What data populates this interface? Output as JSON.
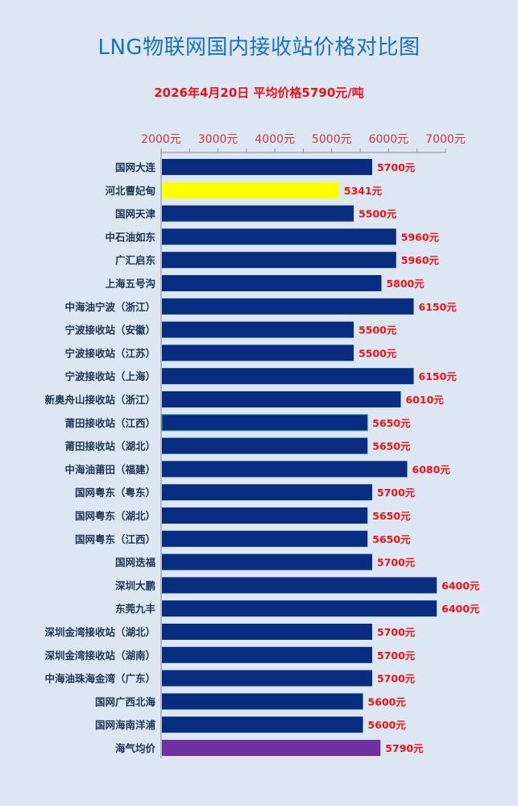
{
  "chart_data": {
    "type": "bar",
    "orientation": "horizontal",
    "title": "LNG物联网国内接收站价格对比图",
    "subtitle": "2026年4月20日 平均价格5790元/吨",
    "tick_labels": [
      "2000元",
      "3000元",
      "4000元",
      "5000元",
      "6000元",
      "7000元"
    ],
    "xlim": [
      2000,
      7000
    ],
    "axis_position": "top",
    "grid": false,
    "categories": [
      "国网大连",
      "河北曹妃甸",
      "国网天津",
      "中石油如东",
      "广汇启东",
      "上海五号沟",
      "中海油宁波（浙江）",
      "宁波接收站（安徽）",
      "宁波接收站（江苏）",
      "宁波接收站（上海）",
      "新奥舟山接收站（浙江）",
      "莆田接收站（江西）",
      "莆田接收站（湖北）",
      "中海油莆田（福建）",
      "国网粤东（粤东）",
      "国网粤东（湖北）",
      "国网粤东（江西）",
      "国网迭福",
      "深圳大鹏",
      "东莞九丰",
      "深圳金湾接收站（湖北）",
      "深圳金湾接收站（湖南）",
      "中海油珠海金湾（广东）",
      "国网广西北海",
      "国网海南洋浦",
      "海气均价"
    ],
    "values": [
      5700,
      5341,
      5500,
      5960,
      5960,
      5800,
      6150,
      5500,
      5500,
      6150,
      6010,
      5650,
      5650,
      6080,
      5700,
      5650,
      5650,
      5700,
      6400,
      6400,
      5700,
      5700,
      5700,
      5600,
      5600,
      5790
    ],
    "data_labels": [
      "5700元",
      "5341元",
      "5500元",
      "5960元",
      "5960元",
      "5800元",
      "6150元",
      "5500元",
      "5500元",
      "6150元",
      "6010元",
      "5650元",
      "5650元",
      "6080元",
      "5700元",
      "5650元",
      "5650元",
      "5700元",
      "6400元",
      "6400元",
      "5700元",
      "5700元",
      "5700元",
      "5600元",
      "5600元",
      "5790元"
    ],
    "colors": {
      "default": "#082c80",
      "highlight": "#ffff00",
      "average": "#7030a0",
      "title": "#1a70c0",
      "labels": "#ee1111",
      "background": "#dde7f3"
    },
    "highlight_index": 1,
    "average_index": 25
  }
}
